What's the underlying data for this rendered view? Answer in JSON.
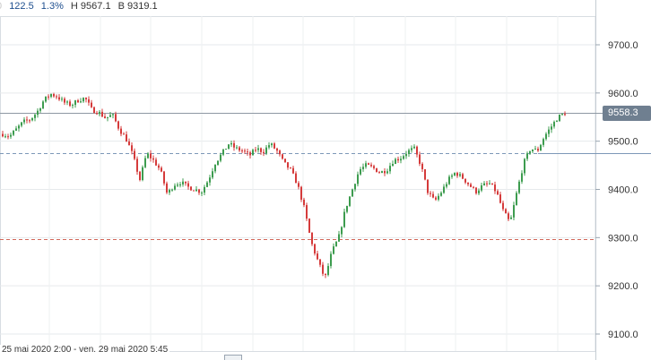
{
  "info": {
    "left_cut": "0",
    "change_abs": "122.5",
    "change_pct": "1.3%",
    "high": "H 9567.1",
    "low": "B 9319.1"
  },
  "date_range": "25 mai 2020 2:00 - ven. 29 mai 2020 5:45",
  "chart_data": {
    "type": "candlestick",
    "title": "",
    "y_axis": {
      "range": [
        9080,
        9780
      ],
      "ticks": [
        9100.0,
        9200.0,
        9300.0,
        9400.0,
        9500.0,
        9600.0,
        9700.0
      ],
      "tick_labels": [
        "9100.0",
        "9200.0",
        "9300.0",
        "9400.0",
        "9500.0",
        "9600.0",
        "9700.0"
      ],
      "side": "right"
    },
    "last_price": 9558.3,
    "last_price_label": "9558.3",
    "reference_lines": [
      {
        "value": 9558.3,
        "style": "solid",
        "color": "#8e98a3"
      },
      {
        "value": 9475,
        "style": "dashed",
        "color": "#7d98b8"
      },
      {
        "value": 9296,
        "style": "dashed",
        "color": "#d2685a"
      }
    ],
    "grid": true,
    "close_path": [
      9515,
      9510,
      9525,
      9540,
      9545,
      9560,
      9585,
      9598,
      9592,
      9580,
      9575,
      9585,
      9590,
      9565,
      9560,
      9548,
      9555,
      9525,
      9505,
      9470,
      9420,
      9475,
      9460,
      9440,
      9390,
      9410,
      9415,
      9405,
      9400,
      9395,
      9420,
      9455,
      9475,
      9495,
      9485,
      9480,
      9470,
      9485,
      9478,
      9495,
      9480,
      9455,
      9440,
      9410,
      9360,
      9290,
      9250,
      9215,
      9270,
      9300,
      9360,
      9400,
      9440,
      9450,
      9445,
      9435,
      9440,
      9460,
      9465,
      9478,
      9485,
      9450,
      9395,
      9375,
      9395,
      9420,
      9435,
      9425,
      9410,
      9395,
      9408,
      9412,
      9395,
      9355,
      9330,
      9395,
      9455,
      9485,
      9480,
      9510,
      9530,
      9550,
      9558
    ],
    "up_color": "#3d9c4f",
    "down_color": "#d53b3b"
  }
}
